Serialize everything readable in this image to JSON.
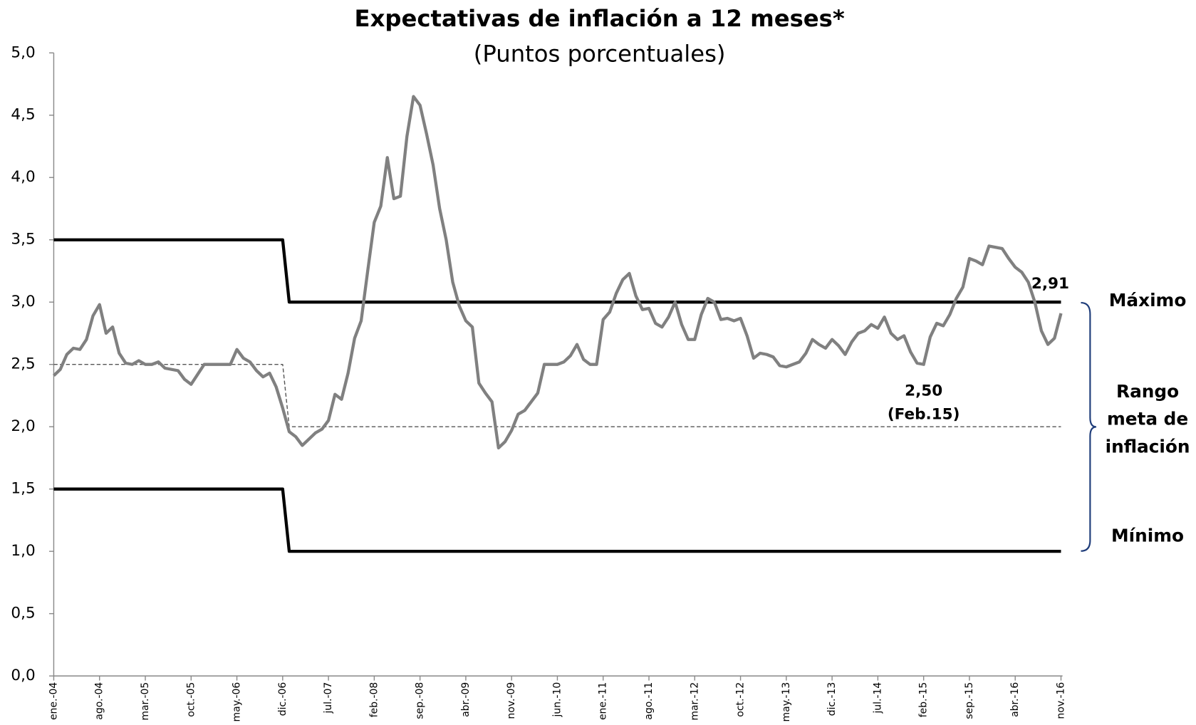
{
  "chart_data": {
    "type": "line",
    "title": "Expectativas de inflación a 12 meses*",
    "subtitle": "(Puntos porcentuales)",
    "categories": [
      "ene.-04",
      null,
      null,
      null,
      null,
      null,
      null,
      "ago.-04",
      null,
      null,
      null,
      null,
      null,
      null,
      "mar.-05",
      null,
      null,
      null,
      null,
      null,
      null,
      "oct.-05",
      null,
      null,
      null,
      null,
      null,
      null,
      "may.-06",
      null,
      null,
      null,
      null,
      null,
      null,
      "dic.-06",
      null,
      null,
      null,
      null,
      null,
      null,
      "jul.-07",
      null,
      null,
      null,
      null,
      null,
      null,
      "feb.-08",
      null,
      null,
      null,
      null,
      null,
      null,
      "sep.-08",
      null,
      null,
      null,
      null,
      null,
      null,
      "abr.-09",
      null,
      null,
      null,
      null,
      null,
      null,
      "nov.-09",
      null,
      null,
      null,
      null,
      null,
      null,
      "jun.-10",
      null,
      null,
      null,
      null,
      null,
      null,
      "ene.-11",
      null,
      null,
      null,
      null,
      null,
      null,
      "ago.-11",
      null,
      null,
      null,
      null,
      null,
      null,
      "mar.-12",
      null,
      null,
      null,
      null,
      null,
      null,
      "oct.-12",
      null,
      null,
      null,
      null,
      null,
      null,
      "may.-13",
      null,
      null,
      null,
      null,
      null,
      null,
      "dic.-13",
      null,
      null,
      null,
      null,
      null,
      null,
      "jul.-14",
      null,
      null,
      null,
      null,
      null,
      null,
      "feb.-15",
      null,
      null,
      null,
      null,
      null,
      null,
      "sep.-15",
      null,
      null,
      null,
      null,
      null,
      null,
      "abr.-16",
      null,
      null,
      null,
      null,
      null,
      null,
      "nov.-16"
    ],
    "series": [
      {
        "color": "#000000",
        "width": 4,
        "dashed": false,
        "values": [
          3.5,
          3.5,
          3.5,
          3.5,
          3.5,
          3.5,
          3.5,
          3.5,
          3.5,
          3.5,
          3.5,
          3.5,
          3.5,
          3.5,
          3.5,
          3.5,
          3.5,
          3.5,
          3.5,
          3.5,
          3.5,
          3.5,
          3.5,
          3.5,
          3.5,
          3.5,
          3.5,
          3.5,
          3.5,
          3.5,
          3.5,
          3.5,
          3.5,
          3.5,
          3.5,
          3.5,
          3,
          3,
          3,
          3,
          3,
          3,
          3,
          3,
          3,
          3,
          3,
          3,
          3,
          3,
          3,
          3,
          3,
          3,
          3,
          3,
          3,
          3,
          3,
          3,
          3,
          3,
          3,
          3,
          3,
          3,
          3,
          3,
          3,
          3,
          3,
          3,
          3,
          3,
          3,
          3,
          3,
          3,
          3,
          3,
          3,
          3,
          3,
          3,
          3,
          3,
          3,
          3,
          3,
          3,
          3,
          3,
          3,
          3,
          3,
          3,
          3,
          3,
          3,
          3,
          3,
          3,
          3,
          3,
          3,
          3,
          3,
          3,
          3,
          3,
          3,
          3,
          3,
          3,
          3,
          3,
          3,
          3,
          3,
          3,
          3,
          3,
          3,
          3,
          3,
          3,
          3,
          3,
          3,
          3,
          3,
          3,
          3,
          3,
          3,
          3,
          3,
          3,
          3,
          3,
          3,
          3,
          3,
          3,
          3,
          3,
          3,
          3,
          3,
          3,
          3,
          3,
          3,
          3,
          3
        ]
      },
      {
        "color": "#000000",
        "width": 4,
        "dashed": false,
        "values": [
          1.5,
          1.5,
          1.5,
          1.5,
          1.5,
          1.5,
          1.5,
          1.5,
          1.5,
          1.5,
          1.5,
          1.5,
          1.5,
          1.5,
          1.5,
          1.5,
          1.5,
          1.5,
          1.5,
          1.5,
          1.5,
          1.5,
          1.5,
          1.5,
          1.5,
          1.5,
          1.5,
          1.5,
          1.5,
          1.5,
          1.5,
          1.5,
          1.5,
          1.5,
          1.5,
          1.5,
          1,
          1,
          1,
          1,
          1,
          1,
          1,
          1,
          1,
          1,
          1,
          1,
          1,
          1,
          1,
          1,
          1,
          1,
          1,
          1,
          1,
          1,
          1,
          1,
          1,
          1,
          1,
          1,
          1,
          1,
          1,
          1,
          1,
          1,
          1,
          1,
          1,
          1,
          1,
          1,
          1,
          1,
          1,
          1,
          1,
          1,
          1,
          1,
          1,
          1,
          1,
          1,
          1,
          1,
          1,
          1,
          1,
          1,
          1,
          1,
          1,
          1,
          1,
          1,
          1,
          1,
          1,
          1,
          1,
          1,
          1,
          1,
          1,
          1,
          1,
          1,
          1,
          1,
          1,
          1,
          1,
          1,
          1,
          1,
          1,
          1,
          1,
          1,
          1,
          1,
          1,
          1,
          1,
          1,
          1,
          1,
          1,
          1,
          1,
          1,
          1,
          1,
          1,
          1,
          1,
          1,
          1,
          1,
          1,
          1,
          1,
          1,
          1,
          1,
          1,
          1,
          1,
          1,
          1
        ]
      },
      {
        "color": "#555555",
        "width": 1.3,
        "dashed": true,
        "values": [
          2.5,
          2.5,
          2.5,
          2.5,
          2.5,
          2.5,
          2.5,
          2.5,
          2.5,
          2.5,
          2.5,
          2.5,
          2.5,
          2.5,
          2.5,
          2.5,
          2.5,
          2.5,
          2.5,
          2.5,
          2.5,
          2.5,
          2.5,
          2.5,
          2.5,
          2.5,
          2.5,
          2.5,
          2.5,
          2.5,
          2.5,
          2.5,
          2.5,
          2.5,
          2.5,
          2.5,
          2,
          2,
          2,
          2,
          2,
          2,
          2,
          2,
          2,
          2,
          2,
          2,
          2,
          2,
          2,
          2,
          2,
          2,
          2,
          2,
          2,
          2,
          2,
          2,
          2,
          2,
          2,
          2,
          2,
          2,
          2,
          2,
          2,
          2,
          2,
          2,
          2,
          2,
          2,
          2,
          2,
          2,
          2,
          2,
          2,
          2,
          2,
          2,
          2,
          2,
          2,
          2,
          2,
          2,
          2,
          2,
          2,
          2,
          2,
          2,
          2,
          2,
          2,
          2,
          2,
          2,
          2,
          2,
          2,
          2,
          2,
          2,
          2,
          2,
          2,
          2,
          2,
          2,
          2,
          2,
          2,
          2,
          2,
          2,
          2,
          2,
          2,
          2,
          2,
          2,
          2,
          2,
          2,
          2,
          2,
          2,
          2,
          2,
          2,
          2,
          2,
          2,
          2,
          2,
          2,
          2,
          2,
          2,
          2,
          2,
          2,
          2,
          2,
          2,
          2,
          2,
          2,
          2,
          2
        ]
      },
      {
        "color": "#808080",
        "width": 4,
        "dashed": false,
        "values": [
          2.41,
          2.46,
          2.58,
          2.63,
          2.62,
          2.7,
          2.89,
          2.98,
          2.75,
          2.8,
          2.59,
          2.51,
          2.5,
          2.53,
          2.5,
          2.5,
          2.52,
          2.47,
          2.46,
          2.45,
          2.38,
          2.34,
          2.42,
          2.5,
          2.5,
          2.5,
          2.5,
          2.5,
          2.62,
          2.55,
          2.52,
          2.45,
          2.4,
          2.43,
          2.32,
          2.15,
          1.96,
          1.92,
          1.85,
          1.9,
          1.95,
          1.98,
          2.05,
          2.26,
          2.22,
          2.43,
          2.71,
          2.85,
          3.25,
          3.64,
          3.77,
          4.16,
          3.83,
          3.85,
          4.33,
          4.65,
          4.58,
          4.35,
          4.1,
          3.75,
          3.5,
          3.16,
          2.97,
          2.85,
          2.8,
          2.35,
          2.27,
          2.2,
          1.83,
          1.88,
          1.97,
          2.1,
          2.13,
          2.2,
          2.27,
          2.5,
          2.5,
          2.5,
          2.52,
          2.57,
          2.66,
          2.54,
          2.5,
          2.5,
          2.86,
          2.92,
          3.07,
          3.18,
          3.23,
          3.05,
          2.94,
          2.95,
          2.83,
          2.8,
          2.88,
          3.0,
          2.82,
          2.7,
          2.7,
          2.9,
          3.03,
          3.0,
          2.86,
          2.87,
          2.85,
          2.87,
          2.73,
          2.55,
          2.59,
          2.58,
          2.56,
          2.49,
          2.48,
          2.5,
          2.52,
          2.59,
          2.7,
          2.66,
          2.63,
          2.7,
          2.65,
          2.58,
          2.68,
          2.75,
          2.77,
          2.82,
          2.79,
          2.88,
          2.75,
          2.7,
          2.73,
          2.6,
          2.51,
          2.5,
          2.72,
          2.83,
          2.81,
          2.9,
          3.03,
          3.12,
          3.35,
          3.33,
          3.3,
          3.45,
          3.44,
          3.43,
          3.35,
          3.28,
          3.24,
          3.16,
          3.0,
          2.77,
          2.66,
          2.71,
          2.91
        ]
      }
    ],
    "ylim": [
      0,
      5
    ],
    "yticks": [
      {
        "value": 0,
        "label": "0,0"
      },
      {
        "value": 0.5,
        "label": "0,5"
      },
      {
        "value": 1,
        "label": "1,0"
      },
      {
        "value": 1.5,
        "label": "1,5"
      },
      {
        "value": 2,
        "label": "2,0"
      },
      {
        "value": 2.5,
        "label": "2,5"
      },
      {
        "value": 3,
        "label": "3,0"
      },
      {
        "value": 3.5,
        "label": "3,5"
      },
      {
        "value": 4,
        "label": "4,0"
      },
      {
        "value": 4.5,
        "label": "4,5"
      },
      {
        "value": 5,
        "label": "5,0"
      }
    ],
    "grid": false,
    "annotations": [
      "2,50",
      "(Feb.15)",
      "2,91"
    ],
    "range_labels": [
      "Máximo",
      "Rango",
      "meta de",
      "inflación",
      "Mínimo"
    ]
  }
}
